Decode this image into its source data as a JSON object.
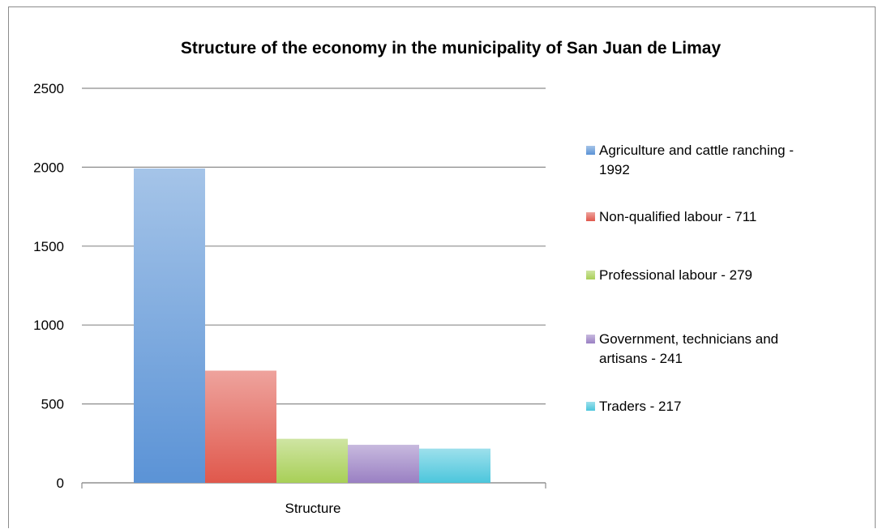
{
  "chart_data": {
    "type": "bar",
    "title": "Structure of the economy in the municipality of San Juan de Limay",
    "categories": [
      "Structure"
    ],
    "ylim": [
      0,
      2500
    ],
    "yticks": [
      0,
      500,
      1000,
      1500,
      2000,
      2500
    ],
    "grid": true,
    "legend_position": "right",
    "series": [
      {
        "name": "Agriculture and cattle ranching - 1992",
        "values": [
          1992
        ],
        "color": "#5b93d6"
      },
      {
        "name": "Non-qualified labour - 711",
        "values": [
          711
        ],
        "color": "#e0584c"
      },
      {
        "name": "Professional labour - 279",
        "values": [
          279
        ],
        "color": "#a8cf57"
      },
      {
        "name": "Government, technicians and artisans - 241",
        "values": [
          241
        ],
        "color": "#9a80c3"
      },
      {
        "name": "Traders - 217",
        "values": [
          217
        ],
        "color": "#4cc6dc"
      }
    ],
    "legend_lines": [
      [
        "Agriculture and cattle ranching  -",
        "1992"
      ],
      [
        "Non-qualified labour - 711"
      ],
      [
        "Professional labour - 279"
      ],
      [
        "Government, technicians and",
        "artisans - 241"
      ],
      [
        "Traders - 217"
      ]
    ]
  }
}
